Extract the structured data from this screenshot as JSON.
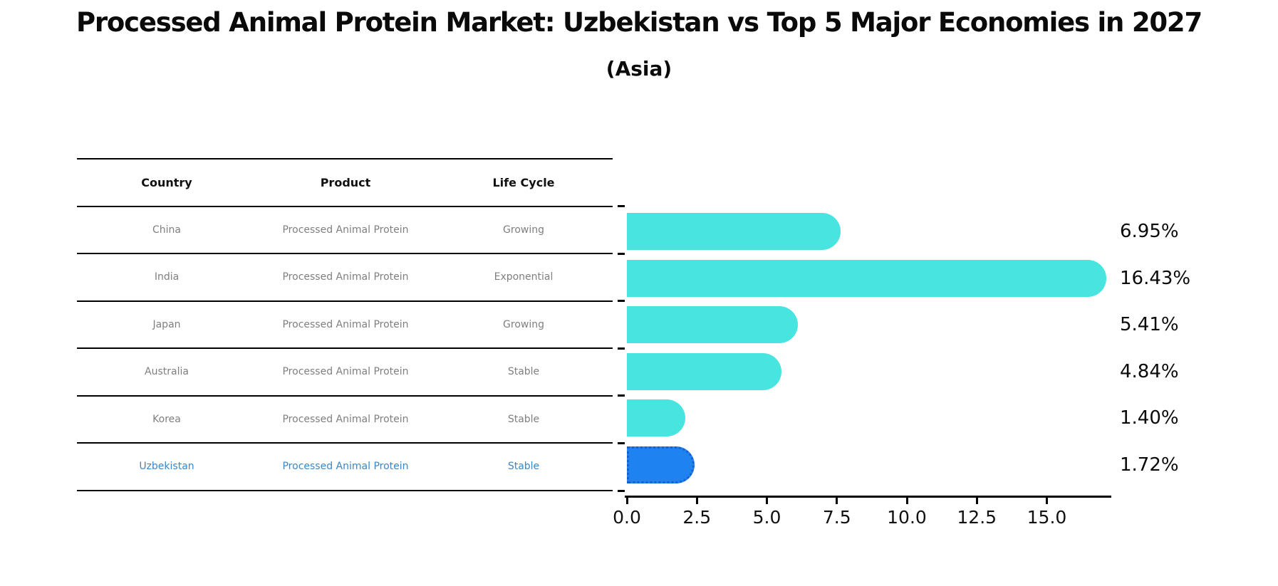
{
  "page": {
    "title": "Processed Animal Protein Market: Uzbekistan vs Top 5 Major Economies in 2027",
    "subtitle": "(Asia)"
  },
  "table": {
    "columns": [
      {
        "key": "country",
        "label": "Country"
      },
      {
        "key": "product",
        "label": "Product"
      },
      {
        "key": "life_cycle",
        "label": "Life Cycle"
      }
    ],
    "rows": [
      {
        "country": "China",
        "product": "Processed Animal Protein",
        "life_cycle": "Growing",
        "highlighted": false
      },
      {
        "country": "India",
        "product": "Processed Animal Protein",
        "life_cycle": "Exponential",
        "highlighted": false
      },
      {
        "country": "Japan",
        "product": "Processed Animal Protein",
        "life_cycle": "Growing",
        "highlighted": false
      },
      {
        "country": "Australia",
        "product": "Processed Animal Protein",
        "life_cycle": "Stable",
        "highlighted": false
      },
      {
        "country": "Korea",
        "product": "Processed Animal Protein",
        "life_cycle": "Stable",
        "highlighted": false
      },
      {
        "country": "Uzbekistan",
        "product": "Processed Animal Protein",
        "life_cycle": "Stable",
        "highlighted": true
      }
    ]
  },
  "chart_data": {
    "type": "bar",
    "orientation": "horizontal",
    "title": "Processed Animal Protein Market: Uzbekistan vs Top 5 Major Economies in 2027",
    "subtitle": "(Asia)",
    "categories": [
      "China",
      "India",
      "Japan",
      "Australia",
      "Korea",
      "Uzbekistan"
    ],
    "values": [
      6.95,
      16.43,
      5.41,
      4.84,
      1.4,
      1.72
    ],
    "value_labels": [
      "6.95%",
      "16.43%",
      "5.41%",
      "4.84%",
      "1.40%",
      "1.72%"
    ],
    "x_tick_labels": [
      "0.0",
      "2.5",
      "5.0",
      "7.5",
      "10.0",
      "12.5",
      "15.0"
    ],
    "x_tick_values": [
      0,
      2.5,
      5,
      7.5,
      10,
      12.5,
      15
    ],
    "xlim": [
      0,
      17.3
    ],
    "grid": false,
    "legend": null,
    "highlight_index": 5
  },
  "colors": {
    "bar": "#48E5E0",
    "highlight_bar": "#1E82F0",
    "highlight_border": "#1A5FD0",
    "highlight_text": "#3A87C9",
    "body_text": "#7F7F7F",
    "header_text": "#111111",
    "axis": "#000000"
  }
}
